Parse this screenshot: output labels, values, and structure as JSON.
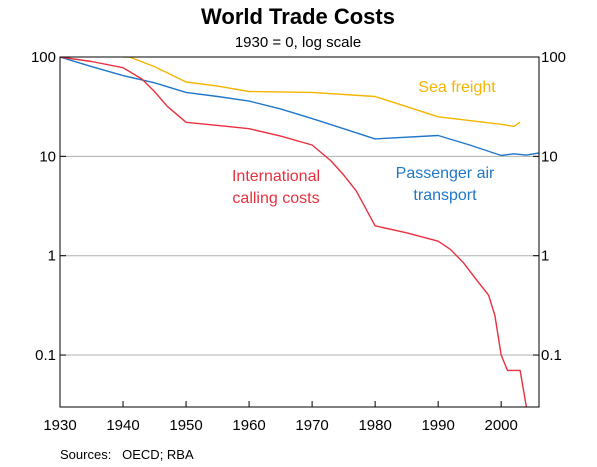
{
  "chart_data": {
    "type": "line",
    "title": "World Trade Costs",
    "subtitle": "1930 = 0, log scale",
    "source": "Sources:   OECD; RBA",
    "xlim": [
      1930,
      2006
    ],
    "ylim": [
      0.03,
      100
    ],
    "y_scale": "log",
    "grid": "horizontal",
    "x_ticks": [
      "1930",
      "1940",
      "1950",
      "1960",
      "1970",
      "1980",
      "1990",
      "2000"
    ],
    "y_ticks_left": [
      "100",
      "10",
      "1",
      "0.1"
    ],
    "y_ticks_right": [
      "100",
      "10",
      "1",
      "0.1"
    ],
    "series": [
      {
        "name": "Sea freight",
        "color": "#f4b400",
        "label_lines": [
          "Sea freight"
        ],
        "points": [
          [
            1940,
            100
          ],
          [
            1941,
            100
          ],
          [
            1945,
            80
          ],
          [
            1950,
            56
          ],
          [
            1955,
            51
          ],
          [
            1960,
            45
          ],
          [
            1970,
            44
          ],
          [
            1980,
            40
          ],
          [
            1990,
            25
          ],
          [
            2000,
            21
          ],
          [
            2002,
            20
          ],
          [
            2003,
            22
          ]
        ]
      },
      {
        "name": "Passenger air transport",
        "color": "#1f77c8",
        "label_lines": [
          "Passenger air",
          "transport"
        ],
        "points": [
          [
            1930,
            100
          ],
          [
            1935,
            80
          ],
          [
            1940,
            65
          ],
          [
            1945,
            55
          ],
          [
            1950,
            44
          ],
          [
            1955,
            40
          ],
          [
            1960,
            36
          ],
          [
            1965,
            30
          ],
          [
            1970,
            24
          ],
          [
            1975,
            19
          ],
          [
            1980,
            15
          ],
          [
            1990,
            16.2
          ],
          [
            1995,
            13
          ],
          [
            2000,
            10.2
          ],
          [
            2002,
            10.6
          ],
          [
            2004,
            10.3
          ],
          [
            2006,
            10.8
          ]
        ]
      },
      {
        "name": "International calling costs",
        "color": "#e8303f",
        "label_lines": [
          "International",
          "calling costs"
        ],
        "points": [
          [
            1930,
            100
          ],
          [
            1935,
            90
          ],
          [
            1940,
            78
          ],
          [
            1943,
            60
          ],
          [
            1945,
            45
          ],
          [
            1947,
            32
          ],
          [
            1950,
            22
          ],
          [
            1955,
            20.5
          ],
          [
            1960,
            19
          ],
          [
            1965,
            16
          ],
          [
            1970,
            13
          ],
          [
            1973,
            9
          ],
          [
            1975,
            6.5
          ],
          [
            1977,
            4.5
          ],
          [
            1980,
            2
          ],
          [
            1985,
            1.7
          ],
          [
            1990,
            1.4
          ],
          [
            1992,
            1.15
          ],
          [
            1994,
            0.85
          ],
          [
            1996,
            0.58
          ],
          [
            1998,
            0.4
          ],
          [
            1999,
            0.25
          ],
          [
            2000,
            0.1
          ],
          [
            2001,
            0.07
          ],
          [
            2003,
            0.07
          ],
          [
            2004,
            0.03
          ]
        ]
      }
    ]
  }
}
